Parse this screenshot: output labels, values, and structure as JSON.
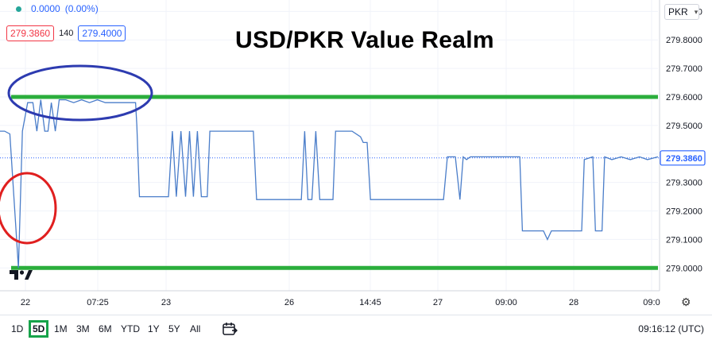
{
  "header": {
    "change_value": "0.0000",
    "change_pct": "(0.00%)",
    "bid": "279.3860",
    "spread": "140",
    "ask": "279.4000"
  },
  "title": "USD/PKR Value Realm",
  "currency": "PKR",
  "timeframes": [
    "1D",
    "5D",
    "1M",
    "3M",
    "6M",
    "YTD",
    "1Y",
    "5Y",
    "All"
  ],
  "active_timeframe": "5D",
  "clock": "09:16:12 (UTC)",
  "icons": [
    "tradingview-logo-icon",
    "calendar-icon",
    "gear-icon",
    "chevron-down-icon"
  ],
  "colors": {
    "line": "#4a7dc9",
    "support_resistance": "#2bae3c",
    "oval_blue": "#2d3bb0",
    "oval_red": "#e01f1f",
    "last_price": "#2962ff",
    "up_dot": "#26a69a"
  },
  "chart_data": {
    "type": "line",
    "title": "USD/PKR Value Realm",
    "x_axis_labels": [
      "22",
      "07:25",
      "23",
      "26",
      "14:45",
      "27",
      "09:00",
      "28",
      "09:0"
    ],
    "y_ticks": [
      279.0,
      279.1,
      279.2,
      279.3,
      279.4,
      279.5,
      279.6,
      279.7,
      279.8,
      279.9
    ],
    "y_tick_labels": [
      "279.0000",
      "279.1000",
      "279.2000",
      "279.3000",
      "279.4000",
      "279.5000",
      "279.6000",
      "279.7000",
      "279.8000",
      "279.9000"
    ],
    "ylim": [
      278.92,
      279.94
    ],
    "xlim": [
      0,
      100
    ],
    "last_price": 279.386,
    "last_price_label": "279.3860",
    "horizontal_levels": [
      279.6,
      279.0
    ],
    "grid": true,
    "series": [
      {
        "points": [
          [
            0,
            279.48
          ],
          [
            0.7,
            279.48
          ],
          [
            1.5,
            279.47
          ],
          [
            2.8,
            279.0
          ],
          [
            3.4,
            279.48
          ],
          [
            4.2,
            279.58
          ],
          [
            5.0,
            279.58
          ],
          [
            5.6,
            279.48
          ],
          [
            6.2,
            279.59
          ],
          [
            6.8,
            279.48
          ],
          [
            7.3,
            279.48
          ],
          [
            7.8,
            279.58
          ],
          [
            8.4,
            279.48
          ],
          [
            9.0,
            279.59
          ],
          [
            10.0,
            279.59
          ],
          [
            11.2,
            279.58
          ],
          [
            12.4,
            279.59
          ],
          [
            13.6,
            279.58
          ],
          [
            14.8,
            279.59
          ],
          [
            16.0,
            279.58
          ],
          [
            17.5,
            279.58
          ],
          [
            18.5,
            279.58
          ],
          [
            20.6,
            279.58
          ],
          [
            20.8,
            279.5
          ],
          [
            21.2,
            279.25
          ],
          [
            25.6,
            279.25
          ],
          [
            26.2,
            279.48
          ],
          [
            26.8,
            279.25
          ],
          [
            27.5,
            279.48
          ],
          [
            28.2,
            279.25
          ],
          [
            28.8,
            279.48
          ],
          [
            29.4,
            279.25
          ],
          [
            30.0,
            279.48
          ],
          [
            30.6,
            279.25
          ],
          [
            31.5,
            279.25
          ],
          [
            31.9,
            279.48
          ],
          [
            37.0,
            279.48
          ],
          [
            38.5,
            279.48
          ],
          [
            39.0,
            279.24
          ],
          [
            45.8,
            279.24
          ],
          [
            46.3,
            279.48
          ],
          [
            46.8,
            279.24
          ],
          [
            47.4,
            279.24
          ],
          [
            48.0,
            279.48
          ],
          [
            48.6,
            279.24
          ],
          [
            50.6,
            279.24
          ],
          [
            51.0,
            279.48
          ],
          [
            53.5,
            279.48
          ],
          [
            54.8,
            279.46
          ],
          [
            55.2,
            279.44
          ],
          [
            55.8,
            279.44
          ],
          [
            56.3,
            279.24
          ],
          [
            67.4,
            279.24
          ],
          [
            68.0,
            279.39
          ],
          [
            69.2,
            279.39
          ],
          [
            69.9,
            279.24
          ],
          [
            70.4,
            279.39
          ],
          [
            70.9,
            279.38
          ],
          [
            71.5,
            279.39
          ],
          [
            72.6,
            279.39
          ],
          [
            74.0,
            279.39
          ],
          [
            75.4,
            279.39
          ],
          [
            76.8,
            279.39
          ],
          [
            78.2,
            279.39
          ],
          [
            79.0,
            279.39
          ],
          [
            79.4,
            279.13
          ],
          [
            82.6,
            279.13
          ],
          [
            83.2,
            279.1
          ],
          [
            83.8,
            279.13
          ],
          [
            88.4,
            279.13
          ],
          [
            88.8,
            279.38
          ],
          [
            90.1,
            279.39
          ],
          [
            90.5,
            279.13
          ],
          [
            91.0,
            279.13
          ],
          [
            91.5,
            279.13
          ],
          [
            91.9,
            279.39
          ],
          [
            93.0,
            279.38
          ],
          [
            94.4,
            279.39
          ],
          [
            95.8,
            279.38
          ],
          [
            97.2,
            279.39
          ],
          [
            98.4,
            279.38
          ],
          [
            100.0,
            279.39
          ]
        ]
      }
    ]
  }
}
